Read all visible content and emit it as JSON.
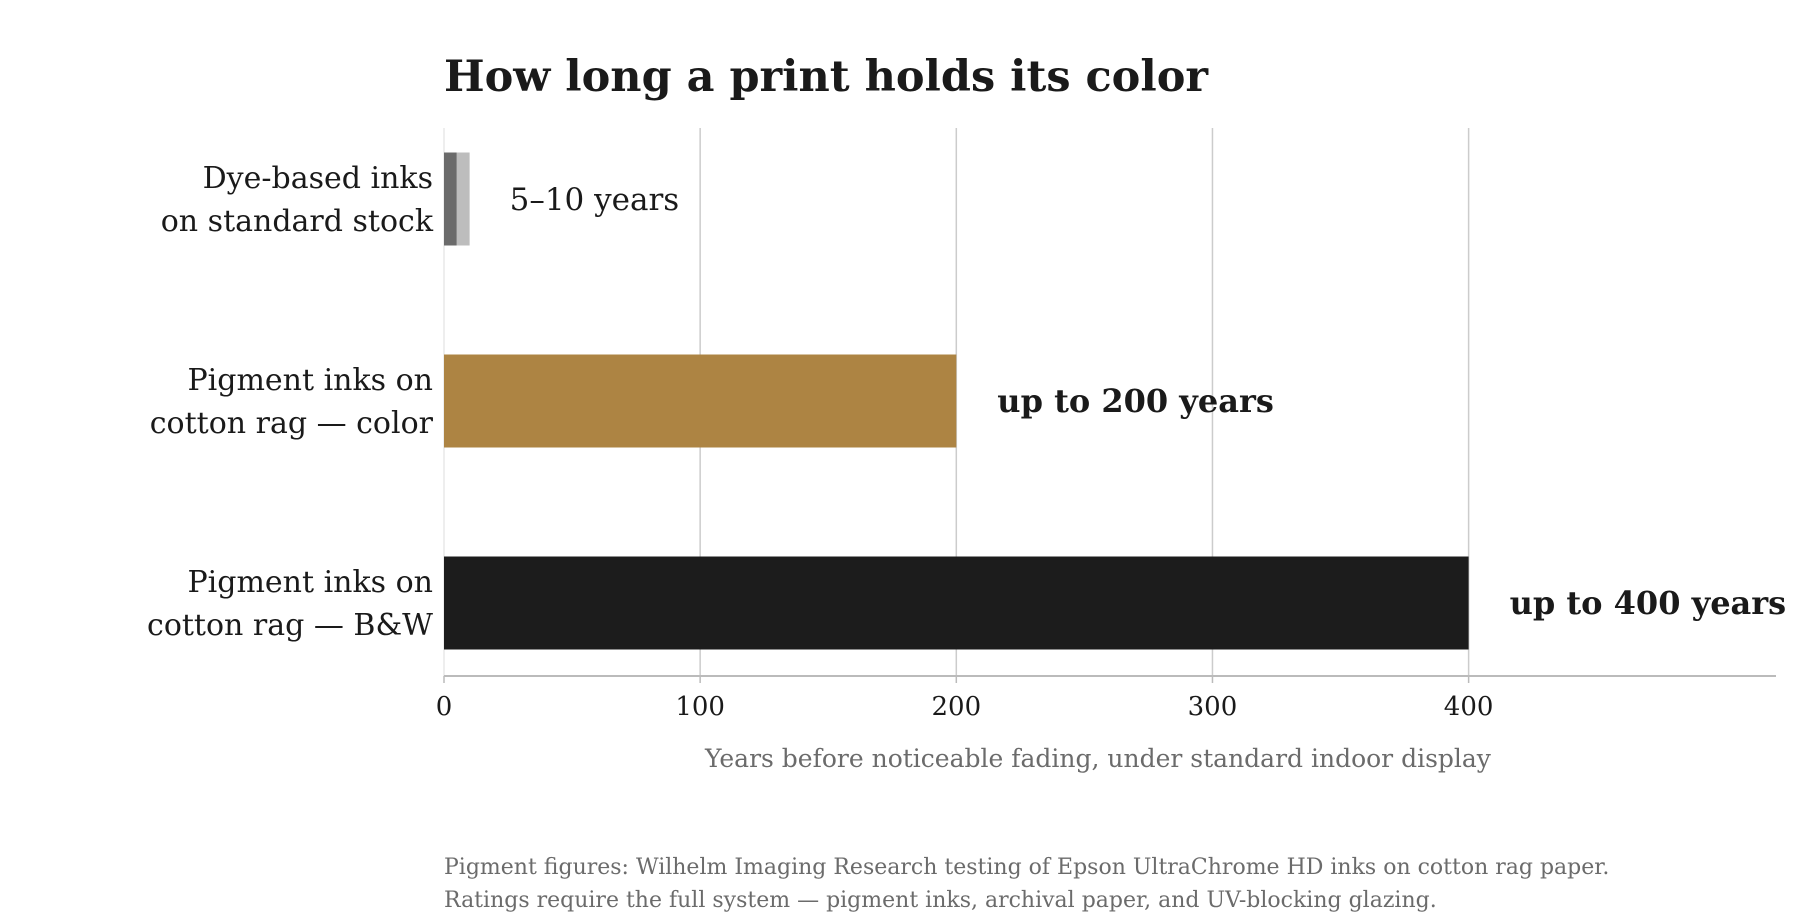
{
  "chart_data": {
    "type": "bar",
    "orientation": "horizontal",
    "title": "How long a print holds its color",
    "xlabel": "Years before noticeable fading, under standard indoor display",
    "ylabel": "",
    "xlim": [
      0,
      520
    ],
    "x_ticks": [
      0,
      100,
      200,
      300,
      400
    ],
    "grid": "vertical",
    "categories": [
      [
        "Dye-based inks",
        "on standard stock"
      ],
      [
        "Pigment inks on",
        "cotton rag — color"
      ],
      [
        "Pigment inks on",
        "cotton rag — B&W"
      ]
    ],
    "bars": [
      {
        "min": 5,
        "max": 10,
        "color_min": "#6b6b6b",
        "color_range": "#bdbdbd",
        "label": "5–10 years",
        "label_bold": false
      },
      {
        "value": 200,
        "color": "#ad8443",
        "label": "up to 200 years",
        "label_bold": true
      },
      {
        "value": 400,
        "color": "#1c1c1c",
        "label": "up to 400 years",
        "label_bold": true
      }
    ],
    "colors": {
      "grid": "#cccccc",
      "axis": "#bbbbbb",
      "muted_text": "#6b6b6b"
    }
  },
  "footnote": [
    "Pigment figures: Wilhelm Imaging Research testing of Epson UltraChrome HD inks on cotton rag paper.",
    "Ratings require the full system — pigment inks, archival paper, and UV-blocking glazing."
  ]
}
